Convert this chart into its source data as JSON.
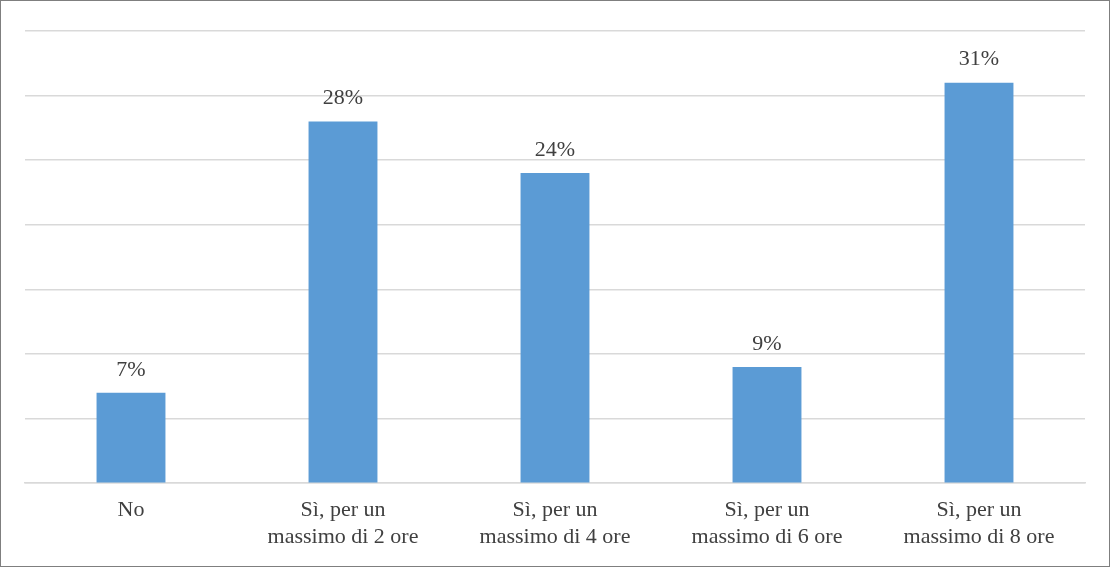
{
  "chart_data": {
    "type": "bar",
    "categories": [
      "No",
      "Sì, per un massimo di 2 ore",
      "Sì, per un massimo di 4 ore",
      "Sì, per un massimo di 6 ore",
      "Sì, per un massimo di 8 ore"
    ],
    "values": [
      7,
      28,
      24,
      9,
      31
    ],
    "color": "#5b9bd5",
    "value_labels": [
      "7%",
      "28%",
      "24%",
      "9%",
      "31%"
    ],
    "ylim": [
      0,
      35
    ],
    "yticks": [
      {
        "value": 0,
        "label": null
      },
      {
        "value": 5,
        "label": null
      },
      {
        "value": 10,
        "label": null
      },
      {
        "value": 15,
        "label": null
      },
      {
        "value": 20,
        "label": null
      },
      {
        "value": 25,
        "label": null
      },
      {
        "value": 30,
        "label": null
      },
      {
        "value": 35,
        "label": null
      }
    ],
    "tick_labels": "x",
    "grid": "y",
    "legend": false
  }
}
